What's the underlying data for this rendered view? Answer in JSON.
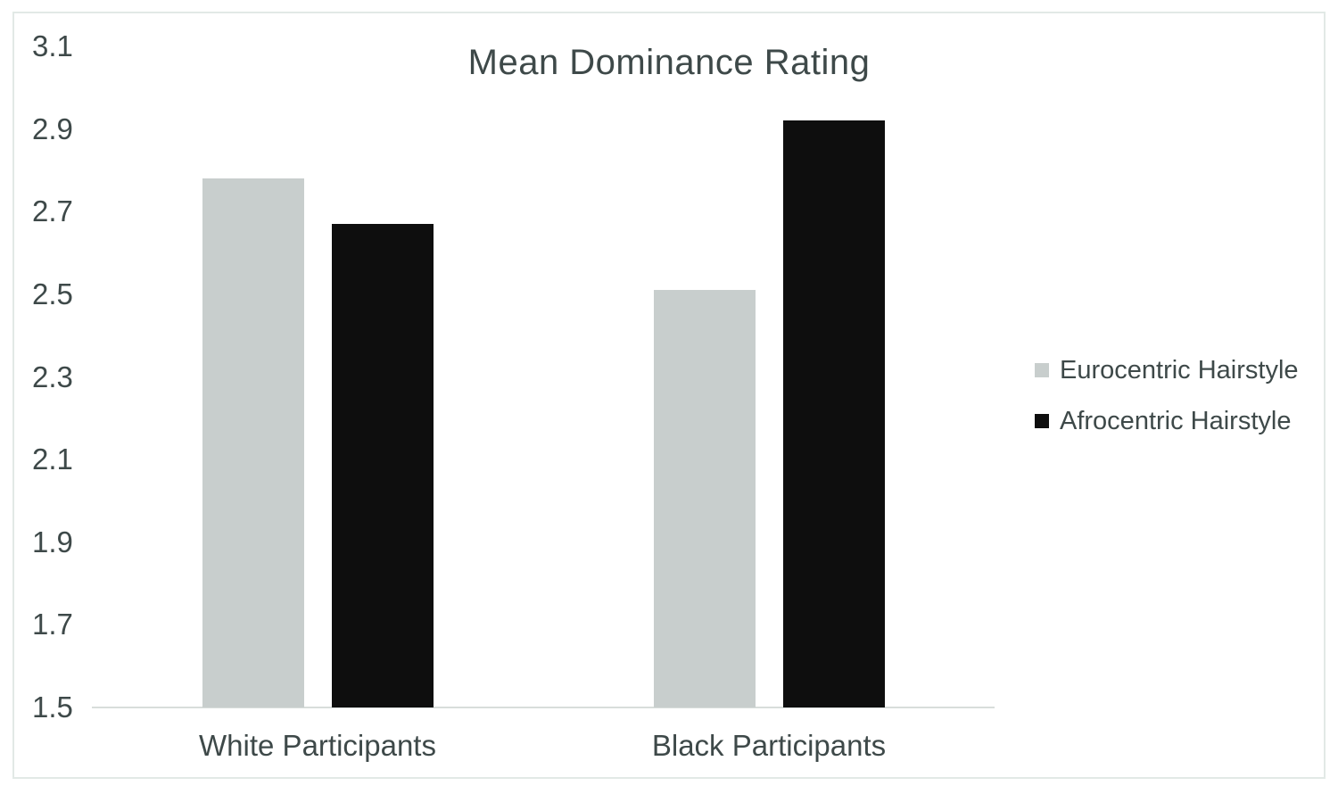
{
  "chart_data": {
    "type": "bar",
    "title": "Mean Dominance Rating",
    "categories": [
      "White Participants",
      "Black Participants"
    ],
    "series": [
      {
        "name": "Eurocentric Hairstyle",
        "color": "#c8cecd",
        "values": [
          2.78,
          2.51
        ]
      },
      {
        "name": "Afrocentric Hairstyle",
        "color": "#0e0e0e",
        "values": [
          2.67,
          2.92
        ]
      }
    ],
    "ylim": [
      1.5,
      3.1
    ],
    "y_ticks": [
      3.1,
      2.9,
      2.7,
      2.5,
      2.3,
      2.1,
      1.9,
      1.7,
      1.5
    ],
    "tick_decimals": 1,
    "xlabel": "",
    "ylabel": "",
    "grid": false,
    "legend_position": "right"
  },
  "colors": {
    "text": "#3e4949",
    "axis_line": "#d8dddb",
    "frame_border": "#e2e9e6",
    "background": "#ffffff"
  }
}
